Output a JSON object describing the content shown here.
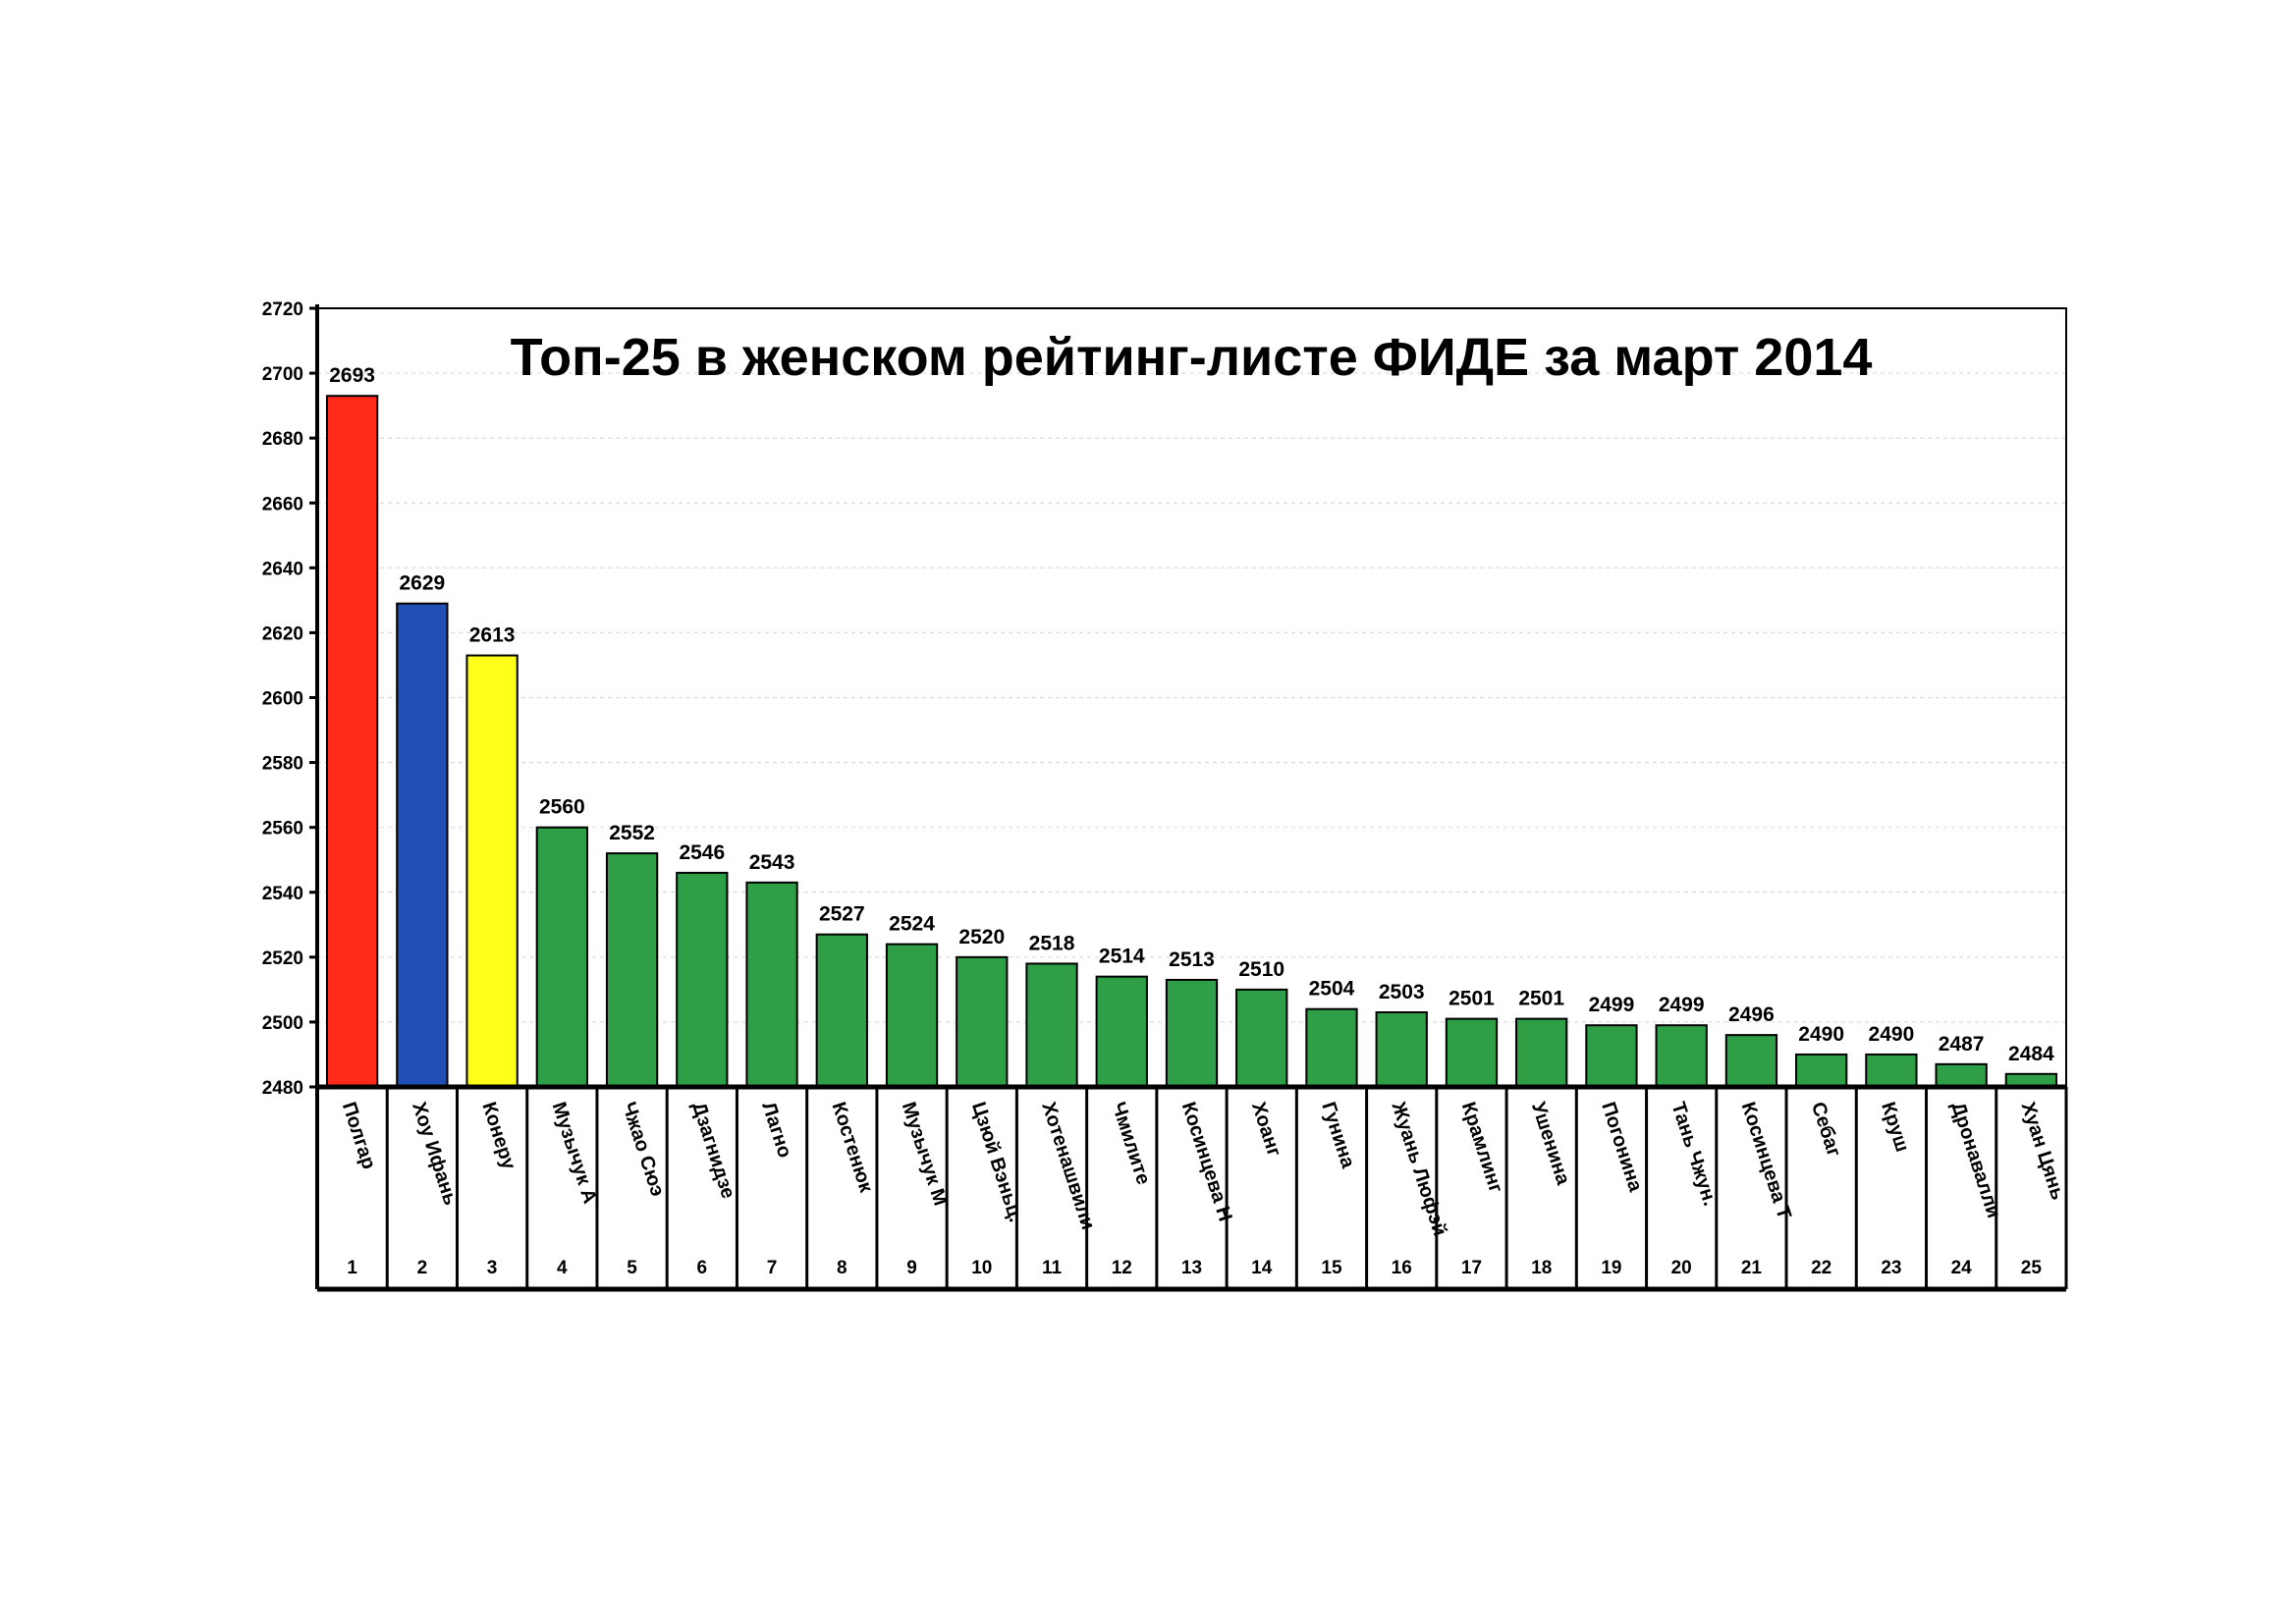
{
  "colors": {
    "background": "#ffffff",
    "axis": "#000000",
    "grid": "#d9d9d9",
    "first_place": "#ff2a1a",
    "second_place": "#1f4fb4",
    "third_place": "#ffff1a",
    "others": "#2e9e47"
  },
  "chart_data": {
    "type": "bar",
    "title": "Топ-25 в женском рейтинг-листе ФИДЕ за март 2014",
    "xlabel": "",
    "ylabel": "",
    "ylim": [
      2480,
      2720
    ],
    "y_ticks": [
      2480,
      2500,
      2520,
      2540,
      2560,
      2580,
      2600,
      2620,
      2640,
      2660,
      2680,
      2700,
      2720
    ],
    "grid": true,
    "legend": "none",
    "categories": [
      "Полгар",
      "Хоу Ифань",
      "Конеру",
      "Музычук А",
      "Чжао Сюэ",
      "Дзагнидзе",
      "Лагно",
      "Костенюк",
      "Музычук М",
      "Цзюй Вэньц.",
      "Хотенашвили",
      "Чмилите",
      "Косинцева Н",
      "Хоанг",
      "Гунина",
      "Жуань Люфэй",
      "Крамлинг",
      "Ушенина",
      "Погонина",
      "Тань Чжун.",
      "Косинцева Т",
      "Себаг",
      "Круш",
      "Дронавалли",
      "Хуан Цянь"
    ],
    "ranks": [
      "1",
      "2",
      "3",
      "4",
      "5",
      "6",
      "7",
      "8",
      "9",
      "10",
      "11",
      "12",
      "13",
      "14",
      "15",
      "16",
      "17",
      "18",
      "19",
      "20",
      "21",
      "22",
      "23",
      "24",
      "25"
    ],
    "values": [
      2693,
      2629,
      2613,
      2560,
      2552,
      2546,
      2543,
      2527,
      2524,
      2520,
      2518,
      2514,
      2513,
      2510,
      2504,
      2503,
      2501,
      2501,
      2499,
      2499,
      2496,
      2490,
      2490,
      2487,
      2484
    ]
  }
}
